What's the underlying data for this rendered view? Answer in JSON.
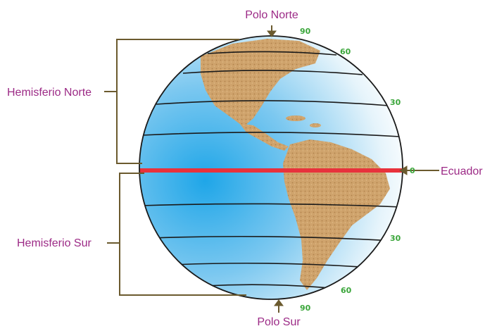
{
  "labels": {
    "north_pole": "Polo Norte",
    "south_pole": "Polo Sur",
    "northern_hemisphere": "Hemisferio Norte",
    "southern_hemisphere": "Hemisferio Sur",
    "equator": "Ecuador"
  },
  "latitudes": {
    "north_90": "90",
    "north_60": "60",
    "north_30": "30",
    "equator_0": "0",
    "south_30": "30",
    "south_60": "60",
    "south_90": "90"
  },
  "colors": {
    "label_text": "#9c2a86",
    "latitude_numbers": "#3aa63a",
    "equator_line": "#e8323c",
    "ocean": "#3fb5ea",
    "land": "#c9a06a",
    "bracket": "#6b5a2e"
  }
}
